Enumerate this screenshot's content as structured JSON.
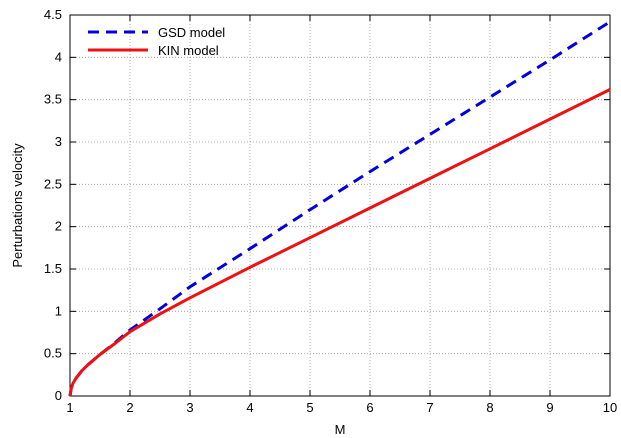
{
  "chart_data": {
    "type": "line",
    "xlabel": "M",
    "ylabel": "Perturbations velocity",
    "xlim": [
      1,
      10
    ],
    "ylim": [
      0,
      4.5
    ],
    "xticks": [
      1,
      2,
      3,
      4,
      5,
      6,
      7,
      8,
      9,
      10
    ],
    "yticks": [
      0,
      0.5,
      1,
      1.5,
      2,
      2.5,
      3,
      3.5,
      4,
      4.5
    ],
    "grid": true,
    "legend_position": "top-left",
    "series": [
      {
        "name": "GSD model",
        "color": "#0000dd",
        "dash": "dashed",
        "x": [
          1,
          1.02,
          1.05,
          1.1,
          1.2,
          1.3,
          1.5,
          1.75,
          2,
          2.5,
          3,
          4,
          5,
          6,
          7,
          8,
          9,
          10
        ],
        "y": [
          0,
          0.09,
          0.15,
          0.21,
          0.3,
          0.37,
          0.49,
          0.63,
          0.78,
          1.03,
          1.29,
          1.74,
          2.2,
          2.65,
          3.09,
          3.53,
          3.97,
          4.42
        ]
      },
      {
        "name": "KIN model",
        "color": "#ee1111",
        "dash": "solid",
        "x": [
          1,
          1.02,
          1.05,
          1.1,
          1.2,
          1.3,
          1.5,
          1.75,
          2,
          2.5,
          3,
          4,
          5,
          6,
          7,
          8,
          9,
          10
        ],
        "y": [
          0,
          0.09,
          0.15,
          0.21,
          0.3,
          0.37,
          0.49,
          0.62,
          0.76,
          0.97,
          1.16,
          1.52,
          1.87,
          2.22,
          2.57,
          2.92,
          3.27,
          3.62
        ]
      }
    ]
  }
}
